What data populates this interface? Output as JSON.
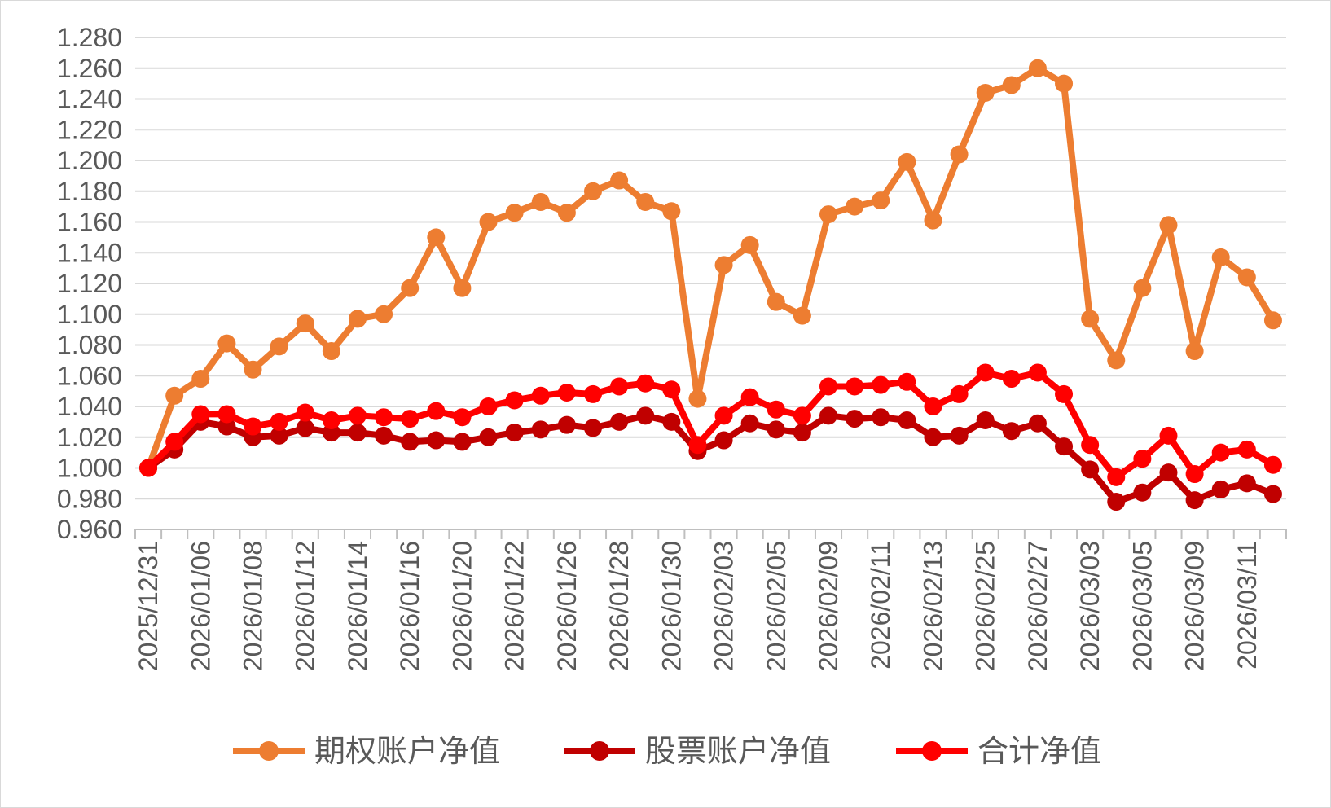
{
  "chart_data": {
    "type": "line",
    "title": "",
    "xlabel": "",
    "ylabel": "",
    "ylim": [
      0.96,
      1.28
    ],
    "ytick_step": 0.02,
    "ytick_decimals": 3,
    "grid": true,
    "legend": "bottom",
    "x": [
      "2025/12/31",
      "2026/01/05",
      "2026/01/06",
      "2026/01/07",
      "2026/01/08",
      "2026/01/09",
      "2026/01/12",
      "2026/01/13",
      "2026/01/14",
      "2026/01/15",
      "2026/01/16",
      "2026/01/19",
      "2026/01/20",
      "2026/01/21",
      "2026/01/22",
      "2026/01/23",
      "2026/01/26",
      "2026/01/27",
      "2026/01/28",
      "2026/01/29",
      "2026/01/30",
      "2026/02/02",
      "2026/02/03",
      "2026/02/04",
      "2026/02/05",
      "2026/02/06",
      "2026/02/09",
      "2026/02/10",
      "2026/02/11",
      "2026/02/12",
      "2026/02/13",
      "2026/02/24",
      "2026/02/25",
      "2026/02/26",
      "2026/02/27",
      "2026/03/02",
      "2026/03/03",
      "2026/03/04",
      "2026/03/05",
      "2026/03/06",
      "2026/03/09",
      "2026/03/10",
      "2026/03/11",
      "2026/03/12"
    ],
    "x_tick_labels": [
      "2025/12/31",
      "2026/01/06",
      "2026/01/08",
      "2026/01/12",
      "2026/01/14",
      "2026/01/16",
      "2026/01/20",
      "2026/01/22",
      "2026/01/26",
      "2026/01/28",
      "2026/01/30",
      "2026/02/03",
      "2026/02/05",
      "2026/02/09",
      "2026/02/11",
      "2026/02/13",
      "2026/02/25",
      "2026/02/27",
      "2026/03/03",
      "2026/03/05",
      "2026/03/09",
      "2026/03/11"
    ],
    "series": [
      {
        "name": "期权账户净值",
        "color": "#ED7D31",
        "values": [
          1.0,
          1.047,
          1.058,
          1.081,
          1.064,
          1.079,
          1.094,
          1.076,
          1.097,
          1.1,
          1.117,
          1.15,
          1.117,
          1.16,
          1.166,
          1.173,
          1.166,
          1.18,
          1.187,
          1.173,
          1.167,
          1.045,
          1.132,
          1.145,
          1.108,
          1.099,
          1.165,
          1.17,
          1.174,
          1.199,
          1.161,
          1.204,
          1.244,
          1.249,
          1.26,
          1.25,
          1.097,
          1.07,
          1.117,
          1.158,
          1.076,
          1.137,
          1.124,
          1.096
        ]
      },
      {
        "name": "股票账户净值",
        "color": "#C00000",
        "values": [
          1.0,
          1.012,
          1.03,
          1.027,
          1.02,
          1.021,
          1.026,
          1.023,
          1.023,
          1.021,
          1.017,
          1.018,
          1.017,
          1.02,
          1.023,
          1.025,
          1.028,
          1.026,
          1.03,
          1.034,
          1.03,
          1.011,
          1.018,
          1.029,
          1.025,
          1.023,
          1.034,
          1.032,
          1.033,
          1.031,
          1.02,
          1.021,
          1.031,
          1.024,
          1.029,
          1.014,
          0.999,
          0.978,
          0.984,
          0.997,
          0.979,
          0.986,
          0.99,
          0.983
        ]
      },
      {
        "name": "合计净值",
        "color": "#FF0000",
        "values": [
          1.0,
          1.017,
          1.035,
          1.035,
          1.027,
          1.03,
          1.036,
          1.031,
          1.034,
          1.033,
          1.032,
          1.037,
          1.033,
          1.04,
          1.044,
          1.047,
          1.049,
          1.048,
          1.053,
          1.055,
          1.051,
          1.015,
          1.034,
          1.046,
          1.038,
          1.034,
          1.053,
          1.053,
          1.054,
          1.056,
          1.04,
          1.048,
          1.062,
          1.058,
          1.062,
          1.048,
          1.015,
          0.994,
          1.006,
          1.021,
          0.996,
          1.01,
          1.012,
          1.002
        ]
      }
    ]
  }
}
